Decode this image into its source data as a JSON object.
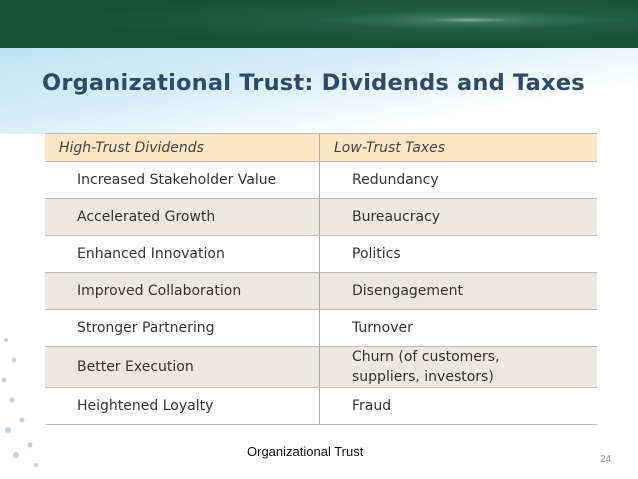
{
  "title": "Organizational Trust: Dividends and Taxes",
  "table": {
    "header": [
      "High-Trust Dividends",
      "Low-Trust Taxes"
    ],
    "rows": [
      [
        "Increased Stakeholder Value",
        "Redundancy"
      ],
      [
        "Accelerated Growth",
        "Bureaucracy"
      ],
      [
        "Enhanced Innovation",
        "Politics"
      ],
      [
        "Improved Collaboration",
        "Disengagement"
      ],
      [
        "Stronger Partnering",
        "Turnover"
      ],
      [
        "Better Execution",
        "Churn (of customers,\nsuppliers, investors)"
      ],
      [
        "Heightened Loyalty",
        "Fraud"
      ]
    ]
  },
  "footer": {
    "text": "Organizational Trust",
    "page_number": 24
  }
}
